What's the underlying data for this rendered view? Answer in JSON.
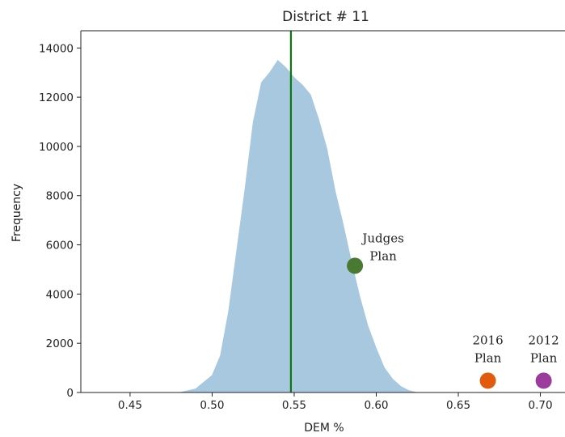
{
  "chart_data": {
    "type": "histogram",
    "title": "District # 11",
    "xlabel": "DEM %",
    "ylabel": "Frequency",
    "xlim": [
      0.42,
      0.715
    ],
    "ylim": [
      0,
      14700
    ],
    "x_ticks": [
      0.45,
      0.5,
      0.55,
      0.6,
      0.65,
      0.7
    ],
    "x_tick_labels": [
      "0.45",
      "0.50",
      "0.55",
      "0.60",
      "0.65",
      "0.70"
    ],
    "y_ticks": [
      0,
      2000,
      4000,
      6000,
      8000,
      10000,
      12000,
      14000
    ],
    "y_tick_labels": [
      "0",
      "2000",
      "4000",
      "6000",
      "8000",
      "10000",
      "12000",
      "14000"
    ],
    "histogram": {
      "color": "#a8c8e0",
      "x": [
        0.48,
        0.49,
        0.5,
        0.505,
        0.51,
        0.515,
        0.52,
        0.525,
        0.53,
        0.535,
        0.54,
        0.545,
        0.55,
        0.555,
        0.56,
        0.565,
        0.57,
        0.575,
        0.58,
        0.585,
        0.59,
        0.595,
        0.6,
        0.605,
        0.61,
        0.615,
        0.62,
        0.625
      ],
      "y": [
        0,
        150,
        700,
        1500,
        3300,
        5800,
        8300,
        11000,
        12600,
        13000,
        13500,
        13200,
        12800,
        12500,
        12100,
        11100,
        9900,
        8200,
        6800,
        5300,
        3900,
        2700,
        1800,
        1000,
        550,
        250,
        80,
        0
      ]
    },
    "vertical_line": {
      "x": 0.548,
      "color": "#0a7a0a"
    },
    "points": [
      {
        "label_lines": [
          "Judges",
          "Plan"
        ],
        "x": 0.587,
        "y": 5150,
        "color": "#4a7a32"
      },
      {
        "label_lines": [
          "2016",
          "Plan"
        ],
        "x": 0.668,
        "y": 480,
        "color": "#e05c0c"
      },
      {
        "label_lines": [
          "2012",
          "Plan"
        ],
        "x": 0.702,
        "y": 480,
        "color": "#9c3a9e"
      }
    ]
  }
}
